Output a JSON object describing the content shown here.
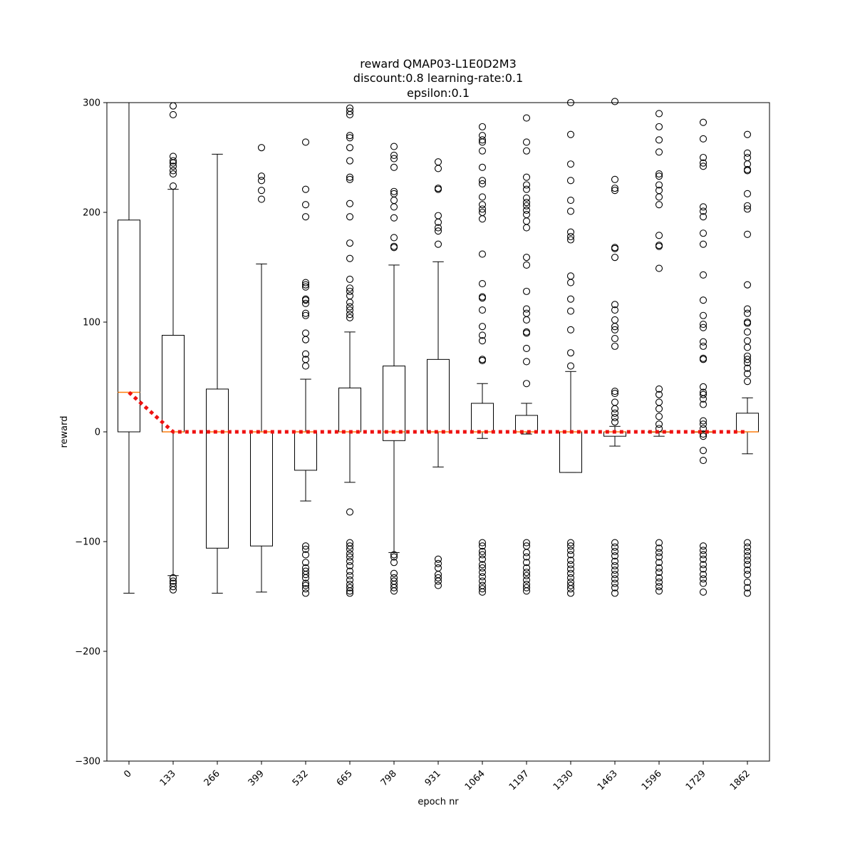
{
  "chart_data": {
    "type": "box",
    "title_lines": [
      "reward QMAP03-L1E0D2M3",
      "discount:0.8 learning-rate:0.1",
      "epsilon:0.1"
    ],
    "xlabel": "epoch nr",
    "ylabel": "reward",
    "ylim": [
      -300,
      300
    ],
    "yticks": [
      -300,
      -200,
      -100,
      0,
      100,
      200,
      300
    ],
    "categories": [
      "0",
      "133",
      "266",
      "399",
      "532",
      "665",
      "798",
      "931",
      "1064",
      "1197",
      "1330",
      "1463",
      "1596",
      "1729",
      "1862"
    ],
    "boxes": [
      {
        "whislo": -147,
        "q1": 0,
        "med": 36,
        "q3": 193,
        "whishi": 300,
        "fliers": []
      },
      {
        "whislo": -131,
        "q1": 0,
        "med": 0,
        "q3": 88,
        "whishi": 221,
        "fliers": [
          224,
          235,
          238,
          242,
          245,
          247,
          251,
          289,
          297,
          -133,
          -136,
          -138,
          -141,
          -144
        ]
      },
      {
        "whislo": -147,
        "q1": -106,
        "med": 0,
        "q3": 39,
        "whishi": 253,
        "fliers": []
      },
      {
        "whislo": -146,
        "q1": -104,
        "med": 0,
        "q3": 0,
        "whishi": 153,
        "fliers": [
          212,
          220,
          229,
          233,
          259
        ]
      },
      {
        "whislo": -63,
        "q1": -35,
        "med": 0,
        "q3": 0,
        "whishi": 48,
        "fliers": [
          60,
          66,
          71,
          84,
          90,
          106,
          108,
          117,
          120,
          121,
          132,
          134,
          136,
          196,
          207,
          221,
          264,
          -104,
          -107,
          -112,
          -119,
          -124,
          -127,
          -130,
          -133,
          -138,
          -140,
          -143,
          -147
        ]
      },
      {
        "whislo": -46,
        "q1": 0,
        "med": 0,
        "q3": 40,
        "whishi": 91,
        "fliers": [
          104,
          107,
          111,
          114,
          118,
          124,
          128,
          131,
          139,
          158,
          172,
          196,
          208,
          230,
          232,
          247,
          259,
          268,
          270,
          289,
          292,
          295,
          -73,
          -101,
          -104,
          -107,
          -111,
          -114,
          -118,
          -122,
          -127,
          -131,
          -135,
          -139,
          -142,
          -145,
          -147
        ]
      },
      {
        "whislo": -110,
        "q1": -8,
        "med": 0,
        "q3": 60,
        "whishi": 152,
        "fliers": [
          168,
          169,
          177,
          195,
          205,
          211,
          217,
          219,
          241,
          249,
          252,
          260,
          -112,
          -114,
          -119,
          -129,
          -133,
          -136,
          -139,
          -142,
          -145
        ]
      },
      {
        "whislo": -32,
        "q1": 0,
        "med": 0,
        "q3": 66,
        "whishi": 155,
        "fliers": [
          171,
          183,
          186,
          191,
          197,
          221,
          222,
          240,
          246,
          -116,
          -120,
          -124,
          -130,
          -133,
          -136,
          -140
        ]
      },
      {
        "whislo": -6,
        "q1": 0,
        "med": 0,
        "q3": 26,
        "whishi": 44,
        "fliers": [
          65,
          66,
          83,
          88,
          96,
          111,
          122,
          123,
          135,
          162,
          194,
          200,
          203,
          207,
          214,
          226,
          229,
          241,
          256,
          264,
          266,
          270,
          278,
          -101,
          -104,
          -109,
          -112,
          -116,
          -121,
          -124,
          -128,
          -132,
          -136,
          -140,
          -143,
          -146
        ]
      },
      {
        "whislo": -2,
        "q1": 0,
        "med": 0,
        "q3": 15,
        "whishi": 26,
        "fliers": [
          44,
          64,
          76,
          90,
          91,
          102,
          108,
          112,
          128,
          152,
          159,
          186,
          192,
          198,
          202,
          206,
          209,
          213,
          221,
          225,
          232,
          256,
          264,
          286,
          -101,
          -104,
          -110,
          -114,
          -119,
          -124,
          -128,
          -131,
          -135,
          -139,
          -142,
          -145
        ]
      },
      {
        "whislo": -37,
        "q1": -37,
        "med": 0,
        "q3": 0,
        "whishi": 55,
        "fliers": [
          60,
          72,
          93,
          110,
          121,
          136,
          142,
          175,
          178,
          182,
          201,
          211,
          229,
          244,
          271,
          300,
          -101,
          -104,
          -108,
          -112,
          -117,
          -121,
          -125,
          -129,
          -133,
          -137,
          -140,
          -143,
          -147
        ]
      },
      {
        "whislo": -13,
        "q1": -4,
        "med": 0,
        "q3": 0,
        "whishi": 5,
        "fliers": [
          9,
          13,
          17,
          21,
          27,
          35,
          37,
          78,
          85,
          93,
          96,
          102,
          111,
          116,
          159,
          167,
          168,
          220,
          222,
          230,
          301,
          -101,
          -105,
          -109,
          -113,
          -118,
          -122,
          -126,
          -130,
          -134,
          -138,
          -142,
          -147
        ]
      },
      {
        "whislo": -4,
        "q1": 0,
        "med": 0,
        "q3": 0,
        "whishi": 0,
        "fliers": [
          3,
          7,
          14,
          21,
          27,
          34,
          39,
          149,
          169,
          170,
          179,
          207,
          214,
          220,
          225,
          233,
          235,
          255,
          266,
          278,
          290,
          -101,
          -106,
          -110,
          -114,
          -119,
          -124,
          -128,
          -133,
          -137,
          -141,
          -145
        ]
      },
      {
        "whislo": 0,
        "q1": 0,
        "med": 0,
        "q3": 0,
        "whishi": 0,
        "fliers": [
          3,
          7,
          10,
          25,
          30,
          34,
          36,
          41,
          66,
          67,
          78,
          82,
          95,
          98,
          106,
          120,
          143,
          171,
          181,
          196,
          201,
          205,
          242,
          245,
          250,
          267,
          282,
          -2,
          -4,
          -17,
          -26,
          -104,
          -108,
          -112,
          -116,
          -121,
          -125,
          -130,
          -134,
          -138,
          -146
        ]
      },
      {
        "whislo": -20,
        "q1": 0,
        "med": 0,
        "q3": 17,
        "whishi": 31,
        "fliers": [
          46,
          53,
          58,
          63,
          66,
          69,
          77,
          83,
          91,
          99,
          100,
          108,
          112,
          134,
          180,
          203,
          206,
          217,
          238,
          239,
          244,
          250,
          254,
          271,
          -101,
          -105,
          -109,
          -113,
          -117,
          -121,
          -126,
          -130,
          -137,
          -142,
          -147
        ]
      }
    ],
    "median_trend": [
      36,
      0,
      0,
      0,
      0,
      0,
      0,
      0,
      0,
      0,
      0,
      0,
      0,
      0,
      0
    ],
    "colors": {
      "box": "#000000",
      "median": "#ff7f0e",
      "trend": "#ee1111"
    }
  }
}
